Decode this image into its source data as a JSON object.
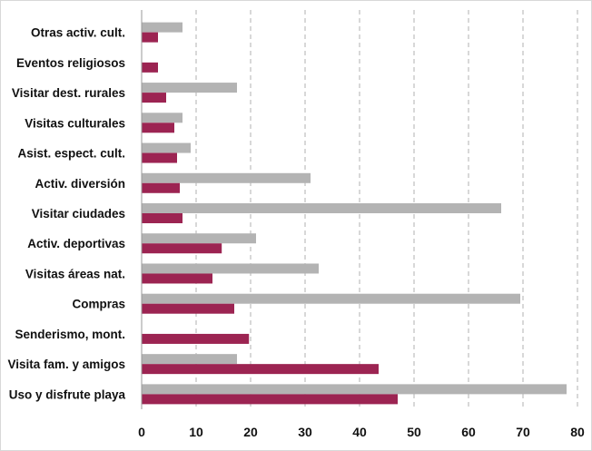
{
  "chart_data": {
    "type": "bar",
    "orientation": "horizontal",
    "title": "",
    "xlabel": "",
    "ylabel": "",
    "categories": [
      "Otras activ. cult.",
      "Eventos religiosos",
      "Visitar dest. rurales",
      "Visitas culturales",
      "Asist. espect. cult.",
      "Activ. diversión",
      "Visitar ciudades",
      "Activ. deportivas",
      "Visitas áreas nat.",
      "Compras",
      "Senderismo, mont.",
      "Visita fam. y amigos",
      "Uso y disfrute playa"
    ],
    "series": [
      {
        "color": "#b3b3b3",
        "values": [
          7.5,
          0,
          17.5,
          7.5,
          9,
          31,
          66,
          21,
          32.5,
          69.5,
          0,
          17.5,
          78
        ]
      },
      {
        "color": "#9c2452",
        "values": [
          3,
          3,
          4.5,
          6,
          6.5,
          7,
          7.5,
          14.7,
          13,
          17,
          19.7,
          43.5,
          47
        ]
      }
    ],
    "xlim": [
      0,
      80
    ],
    "xticks": [
      "0",
      "10",
      "20",
      "30",
      "40",
      "50",
      "60",
      "70",
      "80"
    ],
    "grid": "vertical dashed",
    "legend": "none"
  }
}
